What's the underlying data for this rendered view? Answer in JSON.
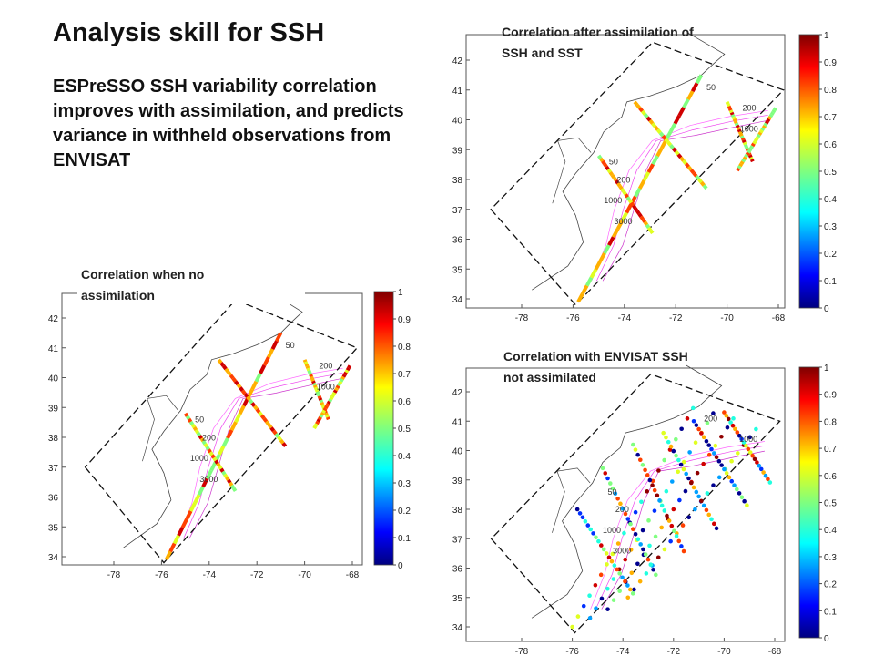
{
  "header": {
    "title": "Analysis skill for SSH",
    "subtitle": "ESPreSSO SSH variability correlation improves with assimilation, and predicts variance in withheld observations from ENVISAT"
  },
  "panels": [
    {
      "title_lines": [
        "Correlation after assimilation  of",
        "SSH and SST"
      ],
      "yticks": [
        42,
        41,
        40,
        39,
        38,
        37,
        36,
        35,
        34
      ],
      "xticks": [
        -78,
        -76,
        -74,
        -72,
        -70,
        -68
      ],
      "colorbar_ticks": [
        1,
        0.9,
        0.8,
        0.7,
        0.6,
        0.5,
        0.4,
        0.3,
        0.2,
        0.1,
        0
      ],
      "contour_labels": [
        "50",
        "200",
        "1000",
        "3000",
        "50",
        "200",
        "1000"
      ]
    },
    {
      "title_lines": [
        "Correlation when no",
        "assimilation"
      ],
      "yticks": [
        42,
        41,
        40,
        39,
        38,
        37,
        36,
        35,
        34
      ],
      "xticks": [
        -78,
        -76,
        -74,
        -72,
        -70,
        -68
      ],
      "colorbar_ticks": [
        1,
        0.9,
        0.8,
        0.7,
        0.6,
        0.5,
        0.4,
        0.3,
        0.2,
        0.1,
        0
      ],
      "contour_labels": [
        "50",
        "200",
        "1000",
        "3000",
        "50",
        "200",
        "1000"
      ]
    },
    {
      "title_lines": [
        "Correlation with ENVISAT SSH",
        "not assimilated"
      ],
      "yticks": [
        42,
        41,
        40,
        39,
        38,
        37,
        36,
        35,
        34
      ],
      "xticks": [
        -78,
        -76,
        -74,
        -72,
        -70,
        -68
      ],
      "colorbar_ticks": [
        1,
        0.9,
        0.8,
        0.7,
        0.6,
        0.5,
        0.4,
        0.3,
        0.2,
        0.1,
        0
      ],
      "contour_labels": [
        "50",
        "200",
        "1000",
        "3000",
        "200",
        "1000"
      ]
    }
  ]
}
